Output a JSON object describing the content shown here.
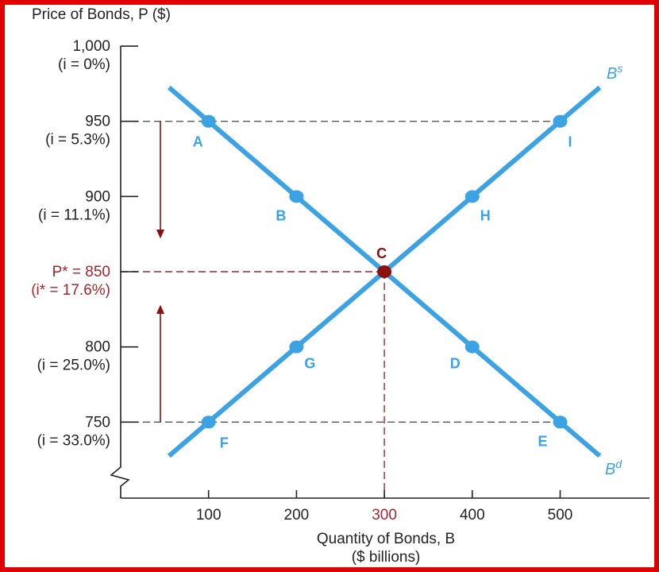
{
  "chart_data": {
    "type": "line",
    "title": "",
    "ylabel": "Price of Bonds, P ($)",
    "xlabel": "Quantity of Bonds, B",
    "xlabel_sub": "($ billions)",
    "xlim": [
      0,
      580
    ],
    "ylim": [
      720,
      1000
    ],
    "x_ticks": [
      {
        "value": 100,
        "label": "100",
        "highlight": false
      },
      {
        "value": 200,
        "label": "200",
        "highlight": false
      },
      {
        "value": 300,
        "label": "300",
        "highlight": true
      },
      {
        "value": 400,
        "label": "400",
        "highlight": false
      },
      {
        "value": 500,
        "label": "500",
        "highlight": false
      }
    ],
    "y_ticks": [
      {
        "value": 1000,
        "label": "1,000",
        "sublabel": "(i = 0%)",
        "highlight": false
      },
      {
        "value": 950,
        "label": "950",
        "sublabel": "(i = 5.3%)",
        "highlight": false
      },
      {
        "value": 900,
        "label": "900",
        "sublabel": "(i = 11.1%)",
        "highlight": false
      },
      {
        "value": 850,
        "label": "P* = 850",
        "sublabel": "(i* = 17.6%)",
        "highlight": true
      },
      {
        "value": 800,
        "label": "800",
        "sublabel": "(i = 25.0%)",
        "highlight": false
      },
      {
        "value": 750,
        "label": "750",
        "sublabel": "(i = 33.0%)",
        "highlight": false
      }
    ],
    "series": [
      {
        "name": "Bs",
        "line": [
          [
            55,
            727.5
          ],
          [
            545,
            972.5
          ]
        ],
        "points": [
          {
            "label": "F",
            "x": 100,
            "y": 750
          },
          {
            "label": "G",
            "x": 200,
            "y": 800
          },
          {
            "label": "C",
            "x": 300,
            "y": 850
          },
          {
            "label": "H",
            "x": 400,
            "y": 900
          },
          {
            "label": "I",
            "x": 500,
            "y": 950
          }
        ]
      },
      {
        "name": "Bd",
        "line": [
          [
            55,
            972.5
          ],
          [
            545,
            727.5
          ]
        ],
        "points": [
          {
            "label": "A",
            "x": 100,
            "y": 950
          },
          {
            "label": "B",
            "x": 200,
            "y": 900
          },
          {
            "label": "C",
            "x": 300,
            "y": 850
          },
          {
            "label": "D",
            "x": 400,
            "y": 800
          },
          {
            "label": "E",
            "x": 500,
            "y": 750
          }
        ]
      }
    ],
    "equilibrium": {
      "label": "C",
      "x": 300,
      "y": 850
    },
    "colors": {
      "curves": "#3ba3e3",
      "equilibrium": "#8b1010",
      "highlight_text": "#a3262b",
      "border": "#e00000"
    }
  }
}
